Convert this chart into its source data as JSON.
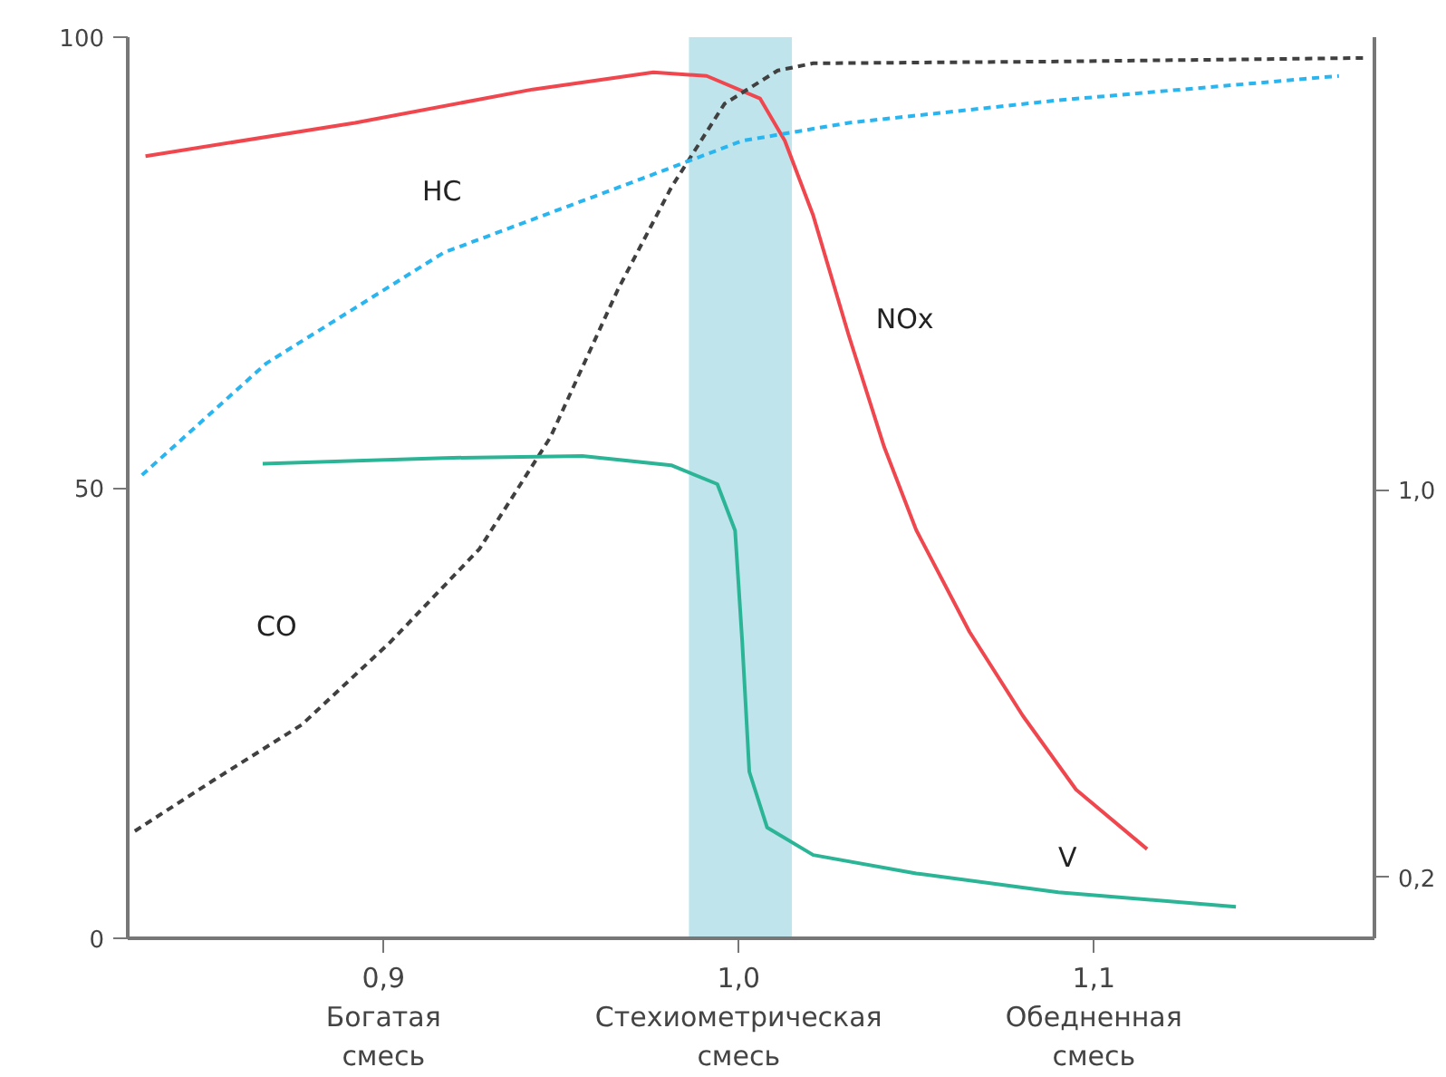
{
  "chart_data": {
    "type": "line",
    "xlim": [
      0.828,
      1.179
    ],
    "ylim": [
      0,
      100
    ],
    "y2lim": [
      0.074,
      1.935
    ],
    "xticks": [
      {
        "value": 0.9,
        "label": "0,9\nБогатая\nсмесь"
      },
      {
        "value": 1.0,
        "label": "1,0\nСтехиометрическая\nсмесь"
      },
      {
        "value": 1.1,
        "label": "1,1\nОбедненная\nсмесь"
      }
    ],
    "yticks": [
      0,
      50,
      100
    ],
    "y2ticks": [
      {
        "value": 1.0,
        "label": "1,0"
      },
      {
        "value": 0.2,
        "label": "0,2"
      }
    ],
    "grid": false,
    "bands": [
      {
        "axis": "x",
        "from": 0.986,
        "to": 1.015,
        "color": "#bfe4ec"
      }
    ],
    "series": [
      {
        "name": "NOx",
        "color": "#f0474f",
        "line_style": "solid",
        "x": [
          0.833,
          0.892,
          0.942,
          0.976,
          0.991,
          1.006,
          1.013,
          1.021,
          1.031,
          1.041,
          1.05,
          1.065,
          1.08,
          1.095,
          1.115
        ],
        "values": [
          86.8,
          90.5,
          94.2,
          96.1,
          95.7,
          93.2,
          88.5,
          80.2,
          66.9,
          54.5,
          45.3,
          34,
          24.7,
          16.5,
          9.9
        ]
      },
      {
        "name": "CO",
        "color": "#404040",
        "line_style": "dashed",
        "x": [
          0.83,
          0.852,
          0.877,
          0.902,
          0.927,
          0.947,
          0.966,
          0.981,
          0.996,
          1.011,
          1.021,
          1.09,
          1.177
        ],
        "values": [
          11.9,
          17.5,
          23.7,
          32.9,
          43.2,
          55.6,
          72,
          83.3,
          92.6,
          96.3,
          97.1,
          97.3,
          97.7
        ]
      },
      {
        "name": "HC",
        "color": "#29b6f0",
        "line_style": "dashed",
        "x": [
          0.832,
          0.867,
          0.917,
          0.966,
          1.001,
          1.031,
          1.09,
          1.169
        ],
        "values": [
          51.4,
          63.8,
          76.1,
          83.3,
          88.5,
          90.5,
          93,
          95.7
        ]
      },
      {
        "name": "V",
        "color": "#2bb596",
        "line_style": "solid",
        "axis": "y2",
        "x": [
          0.866,
          0.917,
          0.956,
          0.981,
          0.994,
          0.999,
          1.001,
          1.003,
          1.008,
          1.021,
          1.05,
          1.09,
          1.14
        ],
        "values": [
          1.054,
          1.066,
          1.07,
          1.051,
          1.012,
          0.916,
          0.687,
          0.418,
          0.303,
          0.246,
          0.208,
          0.169,
          0.139
        ]
      }
    ]
  }
}
